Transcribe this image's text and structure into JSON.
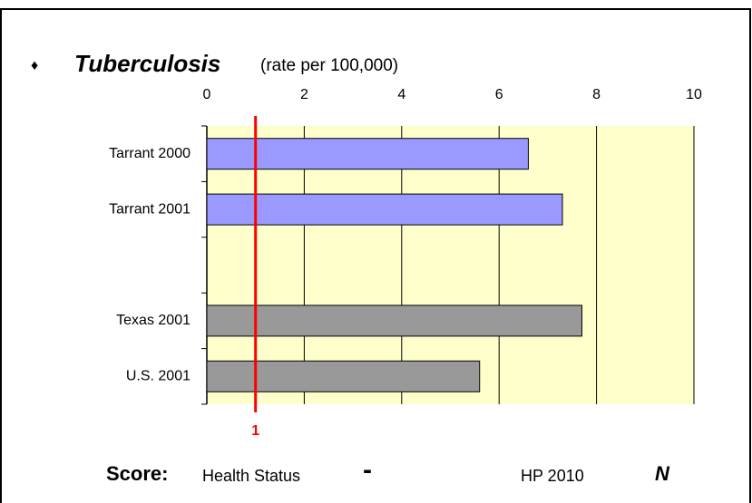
{
  "chart_data": {
    "type": "bar",
    "orientation": "horizontal",
    "bullet": "♦",
    "title": "Tuberculosis",
    "subtitle": "(rate per 100,000)",
    "categories": [
      "Tarrant 2000",
      "Tarrant 2001",
      null,
      "Texas 2001",
      "U.S. 2001"
    ],
    "values": [
      6.6,
      7.3,
      null,
      7.7,
      5.6
    ],
    "colors": [
      "#9999ff",
      "#9999ff",
      null,
      "#999999",
      "#999999"
    ],
    "xlim": [
      0,
      10
    ],
    "xticks": [
      0,
      2,
      4,
      6,
      8,
      10
    ],
    "grid": true,
    "target_line": {
      "value": 1,
      "color": "#ff0000"
    },
    "score": {
      "label": "Score:",
      "health_status": "Health Status",
      "health_value": "-",
      "hp": "HP 2010",
      "hp_value": "N"
    }
  }
}
